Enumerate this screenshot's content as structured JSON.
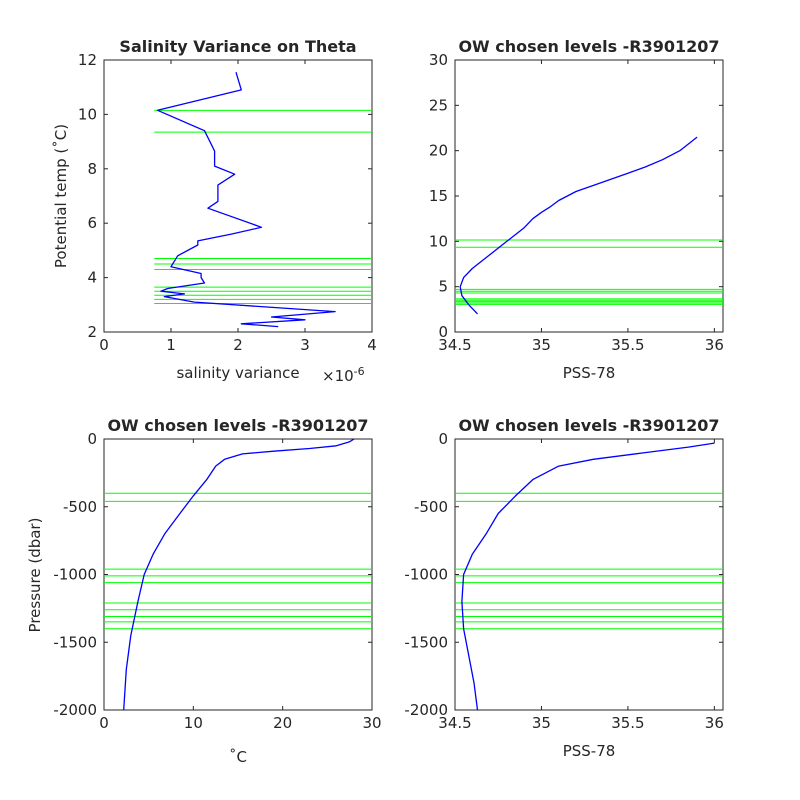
{
  "chart_data": [
    {
      "id": "p1",
      "type": "line",
      "title": "Salinity Variance on Theta",
      "xlabel": "salinity variance",
      "x_exponent": "×10",
      "x_exponent_power": "-6",
      "ylabel": "Potential temp (˚C)",
      "xlim": [
        0,
        4
      ],
      "ylim": [
        2,
        12
      ],
      "xticks": [
        0,
        1,
        2,
        3,
        4
      ],
      "xtick_labels": [
        "0",
        "1",
        "2",
        "3",
        "4"
      ],
      "yticks": [
        2,
        4,
        6,
        8,
        10,
        12
      ],
      "ytick_labels": [
        "2",
        "4",
        "6",
        "8",
        "10",
        "12"
      ],
      "hlines": [
        10.15,
        9.35,
        4.7,
        4.5,
        4.3,
        3.65,
        3.5,
        3.35,
        3.2,
        3.05
      ],
      "hline_xrange": [
        0.75,
        4
      ],
      "series": [
        {
          "color": "#0000ff",
          "x": [
            1.97,
            2.05,
            0.8,
            1.5,
            1.65,
            1.65,
            1.95,
            1.7,
            1.7,
            1.55,
            2.35,
            1.9,
            1.4,
            1.4,
            1.1,
            1.0,
            1.45,
            1.45,
            1.5,
            0.95,
            0.85,
            1.2,
            0.9,
            1.35,
            3.45,
            2.5,
            3.0,
            2.05,
            2.6
          ],
          "y": [
            11.55,
            10.9,
            10.15,
            9.4,
            8.65,
            8.1,
            7.8,
            7.4,
            6.8,
            6.55,
            5.85,
            5.6,
            5.35,
            5.2,
            4.8,
            4.4,
            4.15,
            4.0,
            3.8,
            3.6,
            3.5,
            3.4,
            3.3,
            3.1,
            2.75,
            2.55,
            2.45,
            2.3,
            2.2
          ]
        }
      ]
    },
    {
      "id": "p2",
      "type": "line",
      "title": "OW chosen levels -R3901207",
      "xlabel": "PSS-78",
      "ylabel": "",
      "xlim": [
        34.5,
        36.05
      ],
      "ylim": [
        0,
        30
      ],
      "xticks": [
        34.5,
        35,
        35.5,
        36
      ],
      "xtick_labels": [
        "34.5",
        "35",
        "35.5",
        "36"
      ],
      "yticks": [
        0,
        5,
        10,
        15,
        20,
        25,
        30
      ],
      "ytick_labels": [
        "0",
        "5",
        "10",
        "15",
        "20",
        "25",
        "30"
      ],
      "hlines": [
        10.15,
        9.35,
        4.7,
        4.5,
        4.3,
        3.65,
        3.5,
        3.35,
        3.2,
        3.05
      ],
      "series": [
        {
          "color": "#0000ff",
          "x": [
            34.63,
            34.58,
            34.54,
            34.53,
            34.55,
            34.6,
            34.7,
            34.8,
            34.9,
            34.95,
            35.0,
            35.05,
            35.1,
            35.2,
            35.35,
            35.5,
            35.6,
            35.7,
            35.8,
            35.9
          ],
          "y": [
            2,
            3,
            4,
            5,
            6,
            7,
            8.5,
            10,
            11.5,
            12.5,
            13.2,
            13.8,
            14.5,
            15.5,
            16.5,
            17.5,
            18.2,
            19.0,
            20.0,
            21.5
          ]
        }
      ]
    },
    {
      "id": "p3",
      "type": "line",
      "title": "OW chosen levels -R3901207",
      "xlabel": "˚C",
      "ylabel": "Pressure (dbar)",
      "xlim": [
        0,
        30
      ],
      "ylim": [
        -2000,
        0
      ],
      "xticks": [
        0,
        10,
        20,
        30
      ],
      "xtick_labels": [
        "0",
        "10",
        "20",
        "30"
      ],
      "yticks": [
        0,
        -500,
        -1000,
        -1500,
        -2000
      ],
      "ytick_labels": [
        "0",
        "-500",
        "-1000",
        "-1500",
        "-2000"
      ],
      "hlines": [
        -400,
        -460,
        -960,
        -1010,
        -1060,
        -1210,
        -1260,
        -1310,
        -1350,
        -1400
      ],
      "series": [
        {
          "color": "#0000ff",
          "x": [
            2.2,
            2.5,
            3.0,
            3.8,
            4.5,
            5.5,
            6.8,
            8.5,
            10.0,
            11.5,
            12.5,
            13.5,
            15.5,
            19.0,
            23.0,
            26.0,
            27.5,
            28.0
          ],
          "y": [
            -2000,
            -1700,
            -1450,
            -1200,
            -1000,
            -850,
            -700,
            -550,
            -420,
            -300,
            -200,
            -150,
            -110,
            -90,
            -70,
            -50,
            -20,
            0
          ]
        }
      ]
    },
    {
      "id": "p4",
      "type": "line",
      "title": "OW chosen levels -R3901207",
      "xlabel": "PSS-78",
      "ylabel": "",
      "xlim": [
        34.5,
        36.05
      ],
      "ylim": [
        -2000,
        0
      ],
      "xticks": [
        34.5,
        35,
        35.5,
        36
      ],
      "xtick_labels": [
        "34.5",
        "35",
        "35.5",
        "36"
      ],
      "yticks": [
        0,
        -500,
        -1000,
        -1500,
        -2000
      ],
      "ytick_labels": [
        "0",
        "-500",
        "-1000",
        "-1500",
        "-2000"
      ],
      "hlines": [
        -400,
        -460,
        -960,
        -1010,
        -1060,
        -1210,
        -1260,
        -1310,
        -1350,
        -1400
      ],
      "series": [
        {
          "color": "#0000ff",
          "x": [
            34.63,
            34.61,
            34.58,
            34.55,
            34.54,
            34.55,
            34.6,
            34.68,
            34.75,
            34.85,
            34.95,
            35.1,
            35.3,
            35.6,
            35.85,
            36.0
          ],
          "y": [
            -2000,
            -1800,
            -1600,
            -1400,
            -1200,
            -1000,
            -850,
            -700,
            -550,
            -420,
            -300,
            -200,
            -150,
            -100,
            -60,
            -30
          ]
        }
      ]
    }
  ]
}
